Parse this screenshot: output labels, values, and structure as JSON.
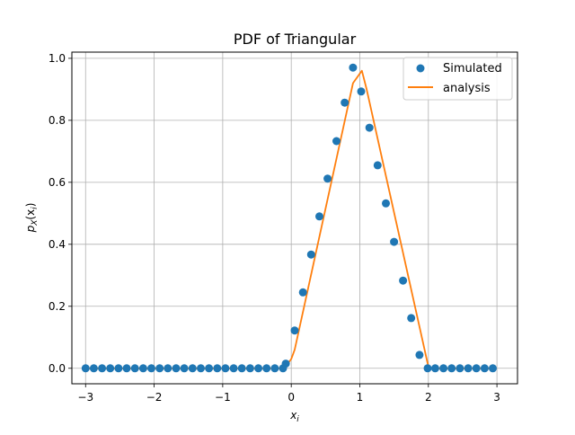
{
  "chart_data": {
    "type": "scatter",
    "title": "PDF of Triangular",
    "xlabel_base": "x",
    "xlabel_sub": "i",
    "ylabel_text": "p",
    "ylabel_sub": "X",
    "ylabel_arg_open": "(x",
    "ylabel_arg_sub": "i",
    "ylabel_arg_close": ")",
    "xlim": [
      -3.2,
      3.3
    ],
    "ylim": [
      -0.05,
      1.02
    ],
    "grid": true,
    "legend_position": "top-right",
    "x_ticks": [
      -3,
      -2,
      -1,
      0,
      1,
      2,
      3
    ],
    "x_tick_labels": [
      "−3",
      "−2",
      "−1",
      "0",
      "1",
      "2",
      "3"
    ],
    "y_ticks": [
      0.0,
      0.2,
      0.4,
      0.6,
      0.8,
      1.0
    ],
    "y_tick_labels": [
      "0.0",
      "0.2",
      "0.4",
      "0.6",
      "0.8",
      "1.0"
    ],
    "series": [
      {
        "name": "Simulated",
        "kind": "scatter",
        "color": "#1f77b4",
        "x": [
          -3.0,
          -2.88,
          -2.76,
          -2.64,
          -2.52,
          -2.4,
          -2.28,
          -2.16,
          -2.04,
          -1.92,
          -1.8,
          -1.68,
          -1.56,
          -1.44,
          -1.32,
          -1.2,
          -1.08,
          -0.96,
          -0.84,
          -0.72,
          -0.6,
          -0.48,
          -0.36,
          -0.24,
          -0.12,
          -0.08,
          0.05,
          0.17,
          0.29,
          0.41,
          0.53,
          0.66,
          0.78,
          0.9,
          1.02,
          1.14,
          1.26,
          1.38,
          1.5,
          1.63,
          1.75,
          1.87,
          1.99,
          2.1,
          2.22,
          2.34,
          2.46,
          2.58,
          2.7,
          2.82,
          2.94
        ],
        "y": [
          0.0,
          0.0,
          0.0,
          0.0,
          0.0,
          0.0,
          0.0,
          0.0,
          0.0,
          0.0,
          0.0,
          0.0,
          0.0,
          0.0,
          0.0,
          0.0,
          0.0,
          0.0,
          0.0,
          0.0,
          0.0,
          0.0,
          0.0,
          0.0,
          0.0,
          0.015,
          0.122,
          0.245,
          0.367,
          0.49,
          0.612,
          0.733,
          0.857,
          0.97,
          0.893,
          0.776,
          0.655,
          0.532,
          0.408,
          0.283,
          0.162,
          0.043,
          0.0,
          0.0,
          0.0,
          0.0,
          0.0,
          0.0,
          0.0,
          0.0,
          0.0
        ]
      },
      {
        "name": "analysis",
        "kind": "line",
        "color": "#ff7f0e",
        "x": [
          -3.0,
          -0.1,
          0.0,
          0.05,
          0.9,
          1.03,
          1.1,
          2.0,
          2.05,
          2.95
        ],
        "y": [
          0.0,
          0.0,
          0.03,
          0.06,
          0.92,
          0.96,
          0.9,
          0.005,
          0.0,
          0.0
        ]
      }
    ]
  }
}
